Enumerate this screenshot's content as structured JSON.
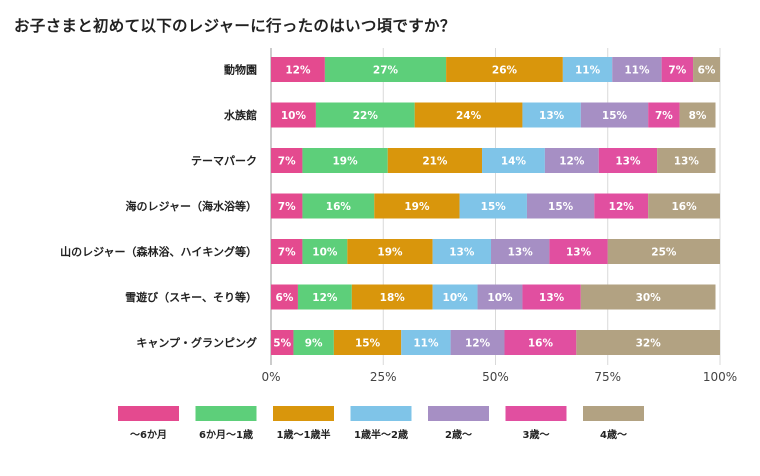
{
  "chart_data": {
    "type": "bar",
    "orientation": "horizontal-stacked-percent",
    "title": "お子さまと初めて以下のレジャーに行ったのはいつ頃ですか？",
    "categories": [
      "動物園",
      "水族館",
      "テーマパーク",
      "海のレジャー（海水浴等）",
      "山のレジャー（森林浴、ハイキング等）",
      "雪遊び（スキー、そり等）",
      "キャンプ・グランピング"
    ],
    "series": [
      {
        "name": "〜6か月",
        "color": "#e44a8f",
        "values": [
          12,
          10,
          7,
          7,
          7,
          6,
          5
        ]
      },
      {
        "name": "6か月〜1歳",
        "color": "#5dcf7a",
        "values": [
          27,
          22,
          19,
          16,
          10,
          12,
          9
        ]
      },
      {
        "name": "1歳〜1歳半",
        "color": "#d9960c",
        "values": [
          26,
          24,
          21,
          19,
          19,
          18,
          15
        ]
      },
      {
        "name": "1歳半〜2歳",
        "color": "#7fc4e8",
        "values": [
          11,
          13,
          14,
          15,
          13,
          10,
          11
        ]
      },
      {
        "name": "2歳〜",
        "color": "#a68fc4",
        "values": [
          11,
          15,
          12,
          15,
          13,
          10,
          12
        ]
      },
      {
        "name": "3歳〜",
        "color": "#e14fa0",
        "values": [
          7,
          7,
          13,
          12,
          13,
          13,
          16
        ]
      },
      {
        "name": "4歳〜",
        "color": "#b2a282",
        "values": [
          6,
          8,
          13,
          16,
          25,
          30,
          32
        ]
      }
    ],
    "xlim": [
      0,
      100
    ],
    "xticks": [
      "0%",
      "25%",
      "50%",
      "75%",
      "100%"
    ],
    "xtick_values": [
      0,
      25,
      50,
      75,
      100
    ],
    "legend_position": "bottom"
  }
}
